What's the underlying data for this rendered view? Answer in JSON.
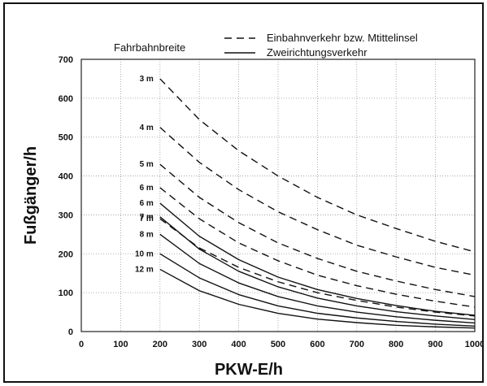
{
  "chart_data": {
    "type": "line",
    "xlabel": "PKW-E/h",
    "ylabel": "Fußgänger/h",
    "xlim": [
      0,
      1000
    ],
    "ylim": [
      0,
      700
    ],
    "xticks": [
      "0",
      "100",
      "200",
      "300",
      "400",
      "500",
      "600",
      "700",
      "800",
      "900",
      "1000"
    ],
    "yticks": [
      "0",
      "100",
      "200",
      "300",
      "400",
      "500",
      "600",
      "700"
    ],
    "grid": true,
    "legend": {
      "title": "Fahrbahnbreite",
      "entries": [
        {
          "label": "Einbahnverkehr bzw. Mtittelinsel",
          "style": "dashed"
        },
        {
          "label": "Zweirichtungsverkehr",
          "style": "solid"
        }
      ]
    },
    "x": [
      200,
      300,
      400,
      500,
      600,
      700,
      800,
      900,
      1000
    ],
    "series": [
      {
        "label": "3 m",
        "style": "dashed",
        "values": [
          650,
          545,
          465,
          400,
          345,
          300,
          265,
          232,
          205
        ]
      },
      {
        "label": "4 m",
        "style": "dashed",
        "values": [
          525,
          435,
          365,
          308,
          262,
          222,
          192,
          165,
          145
        ]
      },
      {
        "label": "5 m",
        "style": "dashed",
        "values": [
          430,
          345,
          280,
          228,
          188,
          155,
          130,
          108,
          90
        ]
      },
      {
        "label": "6 m",
        "style": "dashed",
        "values": [
          370,
          290,
          228,
          182,
          145,
          118,
          96,
          78,
          63
        ]
      },
      {
        "label": "7 m",
        "style": "dashed",
        "values": [
          290,
          215,
          165,
          128,
          100,
          80,
          63,
          50,
          40
        ]
      },
      {
        "label": "6 m",
        "style": "solid",
        "values": [
          330,
          245,
          185,
          140,
          108,
          85,
          67,
          52,
          42
        ]
      },
      {
        "label": "7 m",
        "style": "solid",
        "values": [
          295,
          212,
          155,
          115,
          86,
          66,
          51,
          40,
          31
        ]
      },
      {
        "label": "8 m",
        "style": "solid",
        "values": [
          250,
          175,
          125,
          90,
          66,
          50,
          38,
          29,
          22
        ]
      },
      {
        "label": "10 m",
        "style": "solid",
        "values": [
          200,
          138,
          95,
          66,
          47,
          35,
          26,
          19,
          14
        ]
      },
      {
        "label": "12 m",
        "style": "solid",
        "values": [
          160,
          105,
          70,
          47,
          32,
          23,
          16,
          12,
          9
        ]
      }
    ]
  }
}
